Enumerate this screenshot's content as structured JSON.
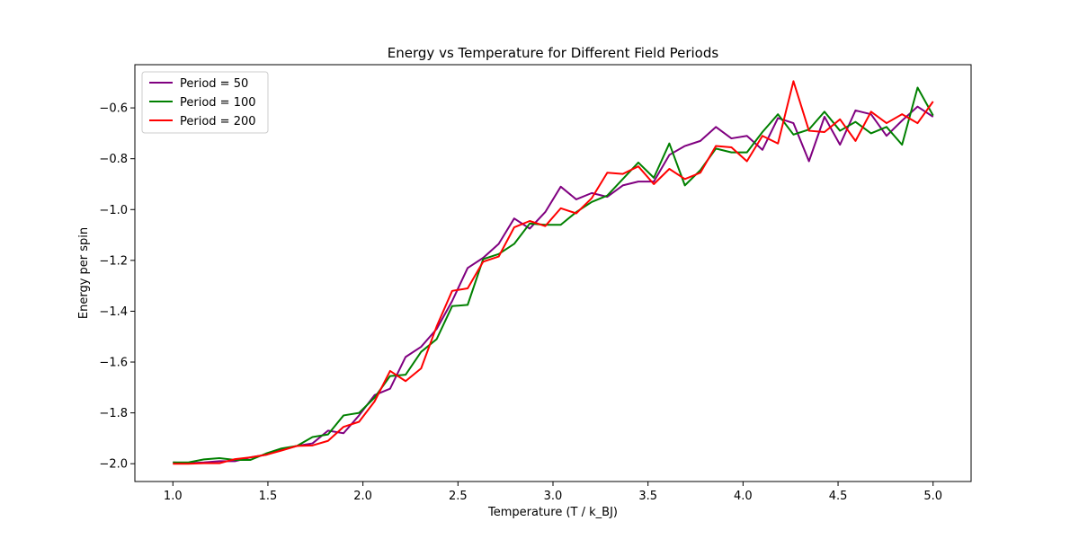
{
  "chart_data": {
    "type": "line",
    "title": "Energy vs Temperature for Different Field Periods",
    "xlabel": "Temperature (T / k_BJ)",
    "ylabel": "Energy per spin",
    "xlim": [
      0.8,
      5.2
    ],
    "ylim": [
      -2.07,
      -0.43
    ],
    "xticks": [
      1.0,
      1.5,
      2.0,
      2.5,
      3.0,
      3.5,
      4.0,
      4.5,
      5.0
    ],
    "xtick_labels": [
      "1.0",
      "1.5",
      "2.0",
      "2.5",
      "3.0",
      "3.5",
      "4.0",
      "4.5",
      "5.0"
    ],
    "yticks": [
      -2.0,
      -1.8,
      -1.6,
      -1.4,
      -1.2,
      -1.0,
      -0.8,
      -0.6
    ],
    "ytick_labels": [
      "−2.0",
      "−1.8",
      "−1.6",
      "−1.4",
      "−1.2",
      "−1.0",
      "−0.8",
      "−0.6"
    ],
    "grid": false,
    "legend_position": "top-left",
    "x": [
      1.0,
      1.0816,
      1.1633,
      1.2449,
      1.3265,
      1.4082,
      1.4898,
      1.5714,
      1.6531,
      1.7347,
      1.8163,
      1.898,
      1.9796,
      2.0612,
      2.1429,
      2.2245,
      2.3061,
      2.3878,
      2.4694,
      2.551,
      2.6327,
      2.7143,
      2.7959,
      2.8776,
      2.9592,
      3.0408,
      3.1224,
      3.2041,
      3.2857,
      3.3673,
      3.449,
      3.5306,
      3.6122,
      3.6939,
      3.7755,
      3.8571,
      3.9388,
      4.0204,
      4.102,
      4.1837,
      4.2653,
      4.3469,
      4.4286,
      4.5102,
      4.5918,
      4.6735,
      4.7551,
      4.8367,
      4.9184,
      5.0
    ],
    "series": [
      {
        "name": "Period = 50",
        "color": "#800080",
        "values": [
          -1.995,
          -1.998,
          -1.995,
          -1.99,
          -1.99,
          -1.975,
          -1.965,
          -1.945,
          -1.93,
          -1.92,
          -1.87,
          -1.88,
          -1.81,
          -1.73,
          -1.705,
          -1.58,
          -1.54,
          -1.47,
          -1.36,
          -1.23,
          -1.19,
          -1.135,
          -1.035,
          -1.075,
          -1.01,
          -0.91,
          -0.96,
          -0.935,
          -0.95,
          -0.905,
          -0.89,
          -0.89,
          -0.785,
          -0.75,
          -0.73,
          -0.675,
          -0.72,
          -0.71,
          -0.765,
          -0.64,
          -0.66,
          -0.81,
          -0.635,
          -0.745,
          -0.61,
          -0.625,
          -0.71,
          -0.65,
          -0.595,
          -0.635
        ]
      },
      {
        "name": "Period = 100",
        "color": "#008000",
        "values": [
          -1.995,
          -1.995,
          -1.983,
          -1.978,
          -1.985,
          -1.985,
          -1.96,
          -1.94,
          -1.93,
          -1.895,
          -1.885,
          -1.81,
          -1.8,
          -1.74,
          -1.655,
          -1.65,
          -1.56,
          -1.51,
          -1.38,
          -1.375,
          -1.195,
          -1.175,
          -1.135,
          -1.055,
          -1.06,
          -1.06,
          -1.01,
          -0.97,
          -0.945,
          -0.88,
          -0.815,
          -0.875,
          -0.74,
          -0.905,
          -0.845,
          -0.76,
          -0.775,
          -0.775,
          -0.695,
          -0.625,
          -0.705,
          -0.685,
          -0.615,
          -0.69,
          -0.655,
          -0.7,
          -0.675,
          -0.745,
          -0.52,
          -0.63
        ]
      },
      {
        "name": "Period = 200",
        "color": "#ff0000",
        "values": [
          -2.0,
          -2.0,
          -1.998,
          -1.998,
          -1.982,
          -1.975,
          -1.965,
          -1.948,
          -1.93,
          -1.928,
          -1.91,
          -1.855,
          -1.835,
          -1.755,
          -1.635,
          -1.675,
          -1.625,
          -1.46,
          -1.32,
          -1.31,
          -1.205,
          -1.185,
          -1.07,
          -1.045,
          -1.065,
          -0.995,
          -1.015,
          -0.955,
          -0.855,
          -0.86,
          -0.83,
          -0.9,
          -0.84,
          -0.88,
          -0.855,
          -0.75,
          -0.755,
          -0.81,
          -0.71,
          -0.74,
          -0.495,
          -0.69,
          -0.695,
          -0.645,
          -0.73,
          -0.615,
          -0.66,
          -0.625,
          -0.66,
          -0.575
        ]
      }
    ]
  }
}
